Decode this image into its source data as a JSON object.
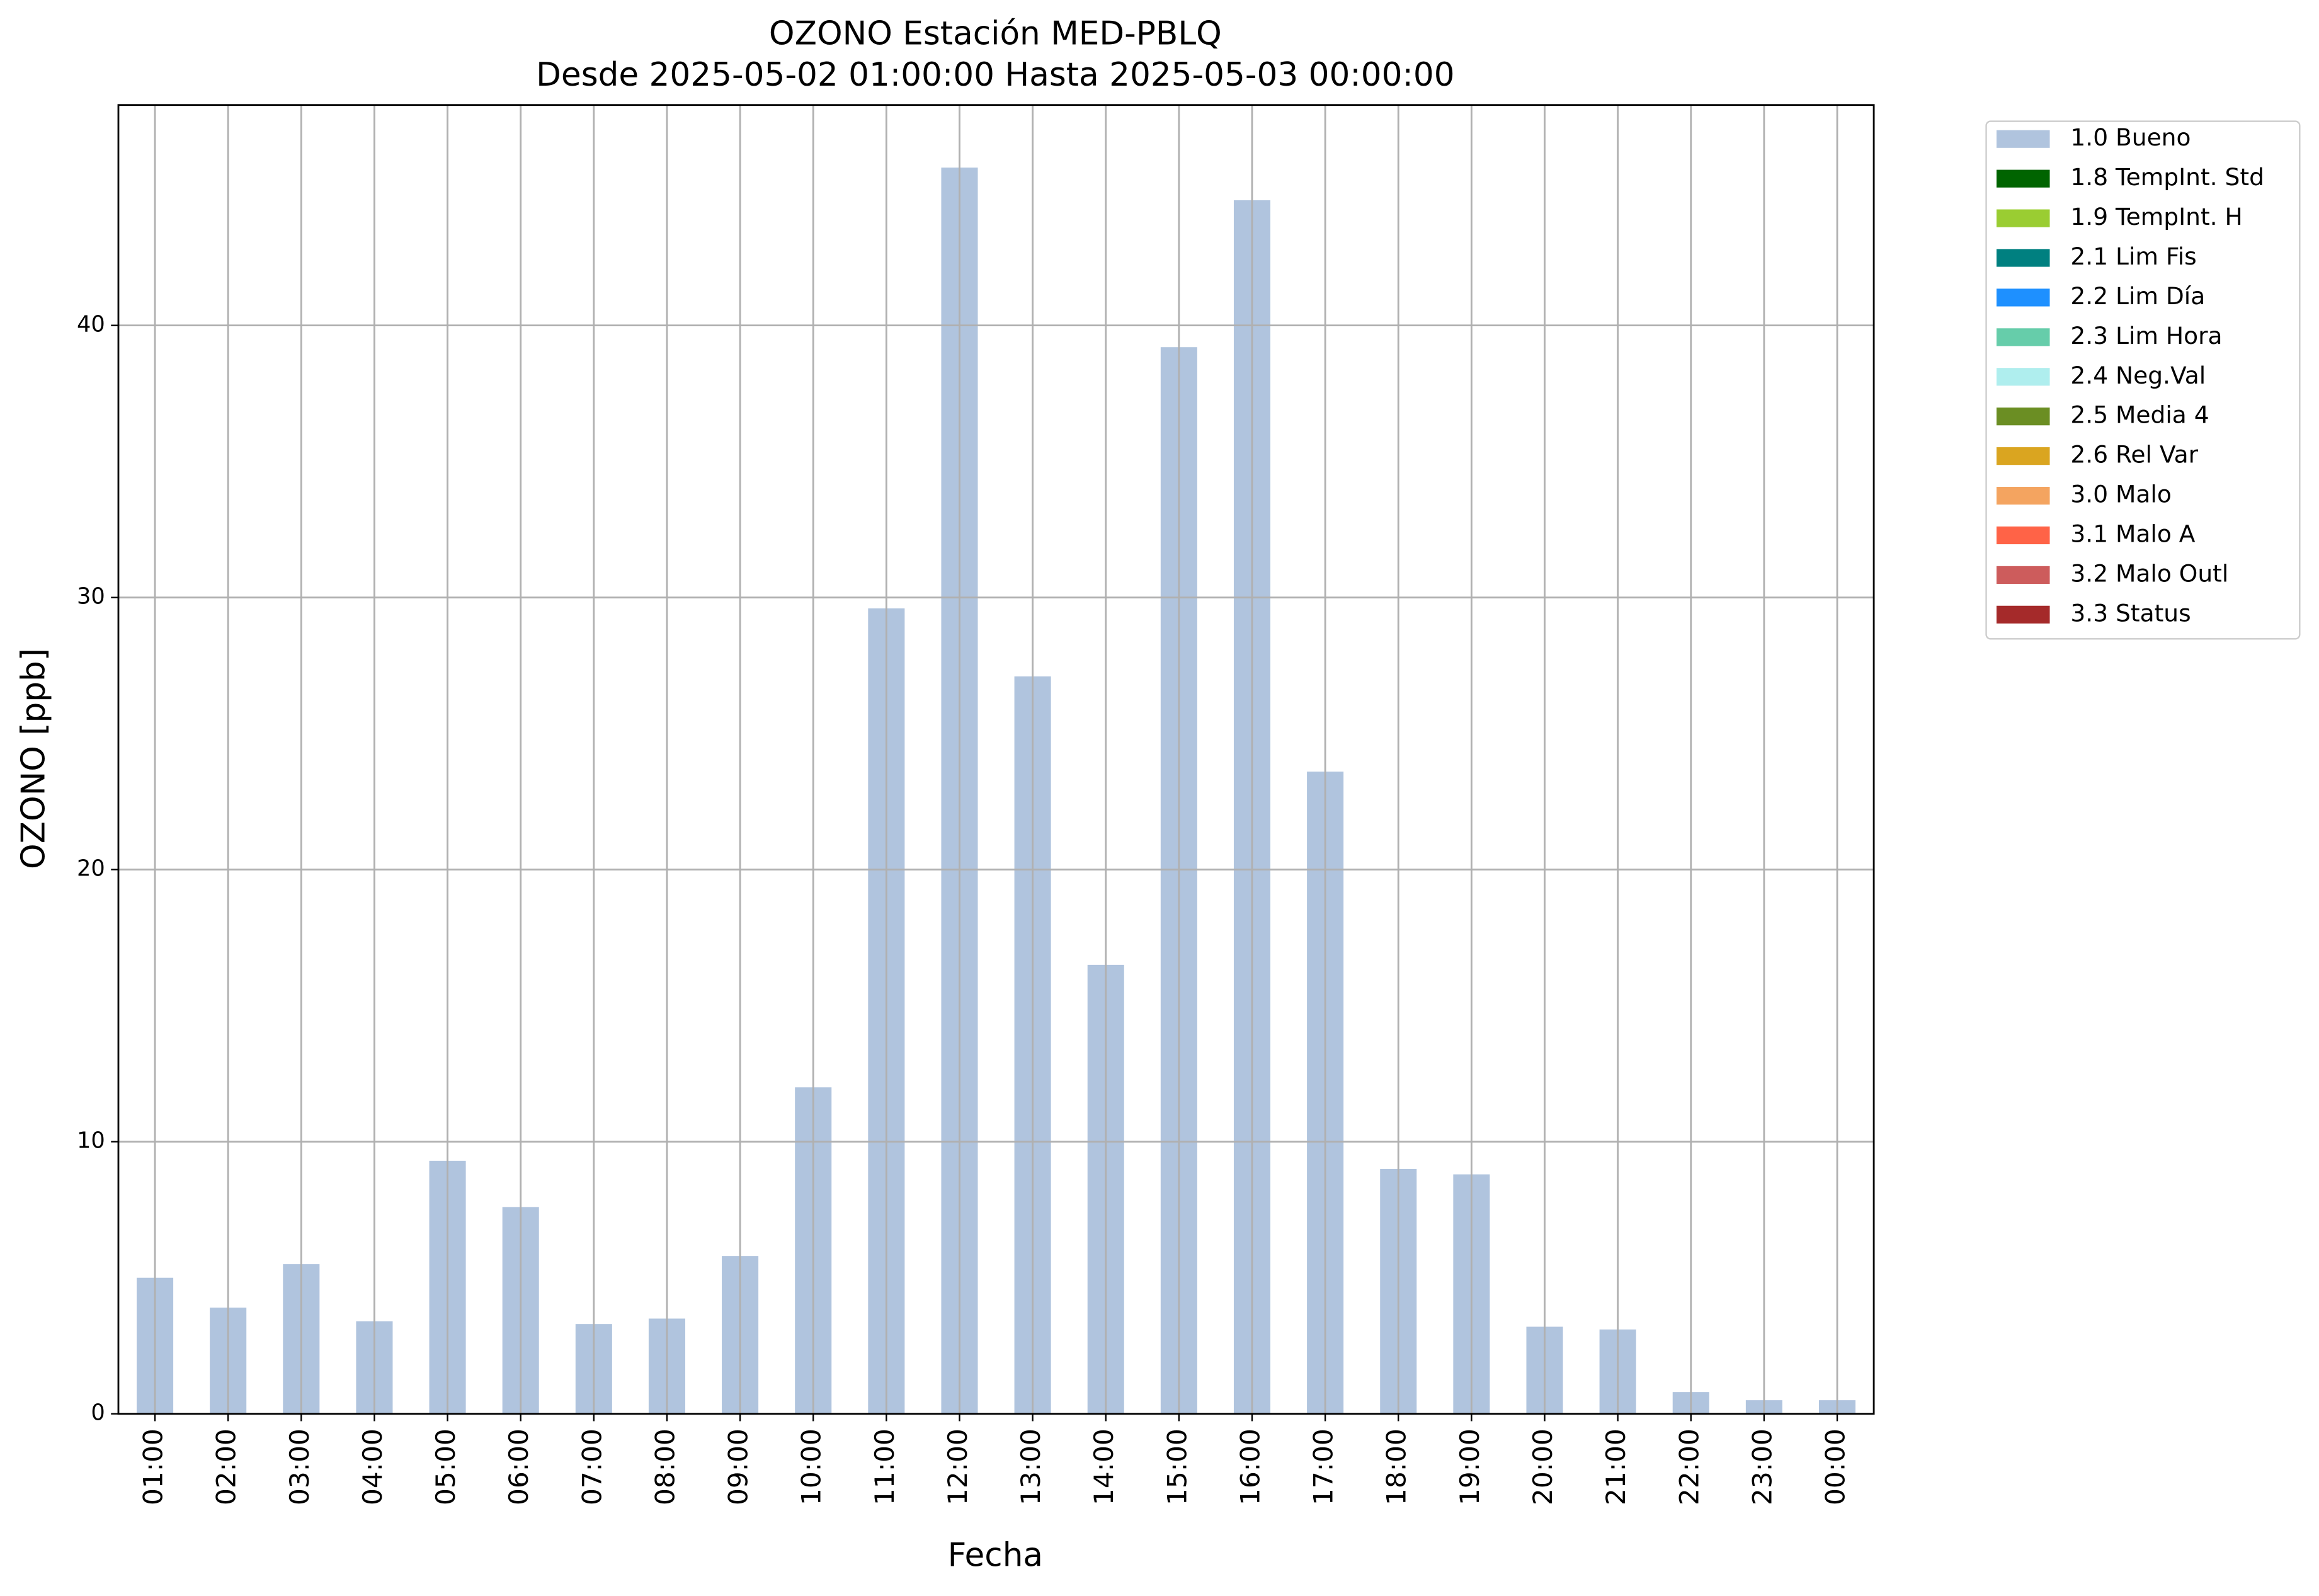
{
  "chart_data": {
    "type": "bar",
    "title": "OZONO Estación MED-PBLQ",
    "subtitle": "Desde 2025-05-02 01:00:00 Hasta 2025-05-03 00:00:00",
    "x_label": "Fecha",
    "y_label": "OZONO [ppb]",
    "categories": [
      "01:00",
      "02:00",
      "03:00",
      "04:00",
      "05:00",
      "06:00",
      "07:00",
      "08:00",
      "09:00",
      "10:00",
      "11:00",
      "12:00",
      "13:00",
      "14:00",
      "15:00",
      "16:00",
      "17:00",
      "18:00",
      "19:00",
      "20:00",
      "21:00",
      "22:00",
      "23:00",
      "00:00"
    ],
    "series": [
      {
        "name": "1.0 Bueno",
        "color": "#b0c4de",
        "values": [
          5.0,
          3.9,
          5.5,
          3.4,
          9.3,
          7.6,
          3.3,
          3.5,
          5.8,
          12.0,
          29.6,
          45.8,
          27.1,
          16.5,
          39.2,
          44.6,
          23.6,
          9.0,
          8.8,
          3.2,
          3.1,
          0.8,
          0.5,
          0.5
        ]
      }
    ],
    "legend": [
      {
        "name": "1.0 Bueno",
        "color": "#b0c4de"
      },
      {
        "name": "1.8 TempInt. Std",
        "color": "#006400"
      },
      {
        "name": "1.9 TempInt. H",
        "color": "#9acd32"
      },
      {
        "name": "2.1 Lim Fis",
        "color": "#008080"
      },
      {
        "name": "2.2 Lim Día",
        "color": "#1e90ff"
      },
      {
        "name": "2.3 Lim Hora",
        "color": "#66cdaa"
      },
      {
        "name": "2.4 Neg.Val",
        "color": "#afeeee"
      },
      {
        "name": "2.5 Media 4",
        "color": "#6b8e23"
      },
      {
        "name": "2.6 Rel Var",
        "color": "#daa520"
      },
      {
        "name": "3.0 Malo",
        "color": "#f4a460"
      },
      {
        "name": "3.1 Malo A",
        "color": "#ff6347"
      },
      {
        "name": "3.2 Malo Outl",
        "color": "#cd5c5c"
      },
      {
        "name": "3.3 Status",
        "color": "#a52a2a"
      }
    ],
    "legend_position": "outside-upper-right",
    "ylim": [
      0,
      48.1
    ],
    "yticks": [
      0,
      10,
      20,
      30,
      40
    ],
    "grid": true
  }
}
